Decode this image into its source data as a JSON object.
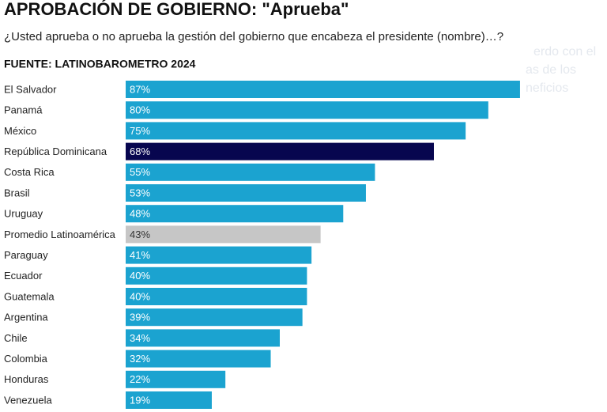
{
  "chart_data": {
    "type": "bar",
    "title": "APROBACIÓN DE GOBIERNO: \"Aprueba\"",
    "subtitle": "¿Usted aprueba o no aprueba la gestión del gobierno que encabeza el presidente (nombre)…?",
    "source": "FUENTE: LATINOBAROMETRO 2024",
    "categories": [
      "El Salvador",
      "Panamá",
      "México",
      "República Dominicana",
      "Costa Rica",
      "Brasil",
      "Uruguay",
      "Promedio Latinoamérica",
      "Paraguay",
      "Ecuador",
      "Guatemala",
      "Argentina",
      "Chile",
      "Colombia",
      "Honduras",
      "Venezuela"
    ],
    "values": [
      87,
      80,
      75,
      68,
      55,
      53,
      48,
      43,
      41,
      40,
      40,
      39,
      34,
      32,
      22,
      19
    ],
    "value_labels": [
      "87%",
      "80%",
      "75%",
      "68%",
      "55%",
      "53%",
      "48%",
      "43%",
      "41%",
      "40%",
      "40%",
      "39%",
      "34%",
      "32%",
      "22%",
      "19%"
    ],
    "colors": [
      "#1ba3d0",
      "#1ba3d0",
      "#1ba3d0",
      "#07064f",
      "#1ba3d0",
      "#1ba3d0",
      "#1ba3d0",
      "#c6c6c6",
      "#1ba3d0",
      "#1ba3d0",
      "#1ba3d0",
      "#1ba3d0",
      "#1ba3d0",
      "#1ba3d0",
      "#1ba3d0",
      "#1ba3d0"
    ],
    "label_colors": [
      "#ffffff",
      "#ffffff",
      "#ffffff",
      "#ffffff",
      "#ffffff",
      "#ffffff",
      "#ffffff",
      "#333333",
      "#ffffff",
      "#ffffff",
      "#ffffff",
      "#ffffff",
      "#ffffff",
      "#ffffff",
      "#ffffff",
      "#ffffff"
    ]
  },
  "background_text": [
    "erdo con el",
    "as de los",
    "neficios"
  ]
}
